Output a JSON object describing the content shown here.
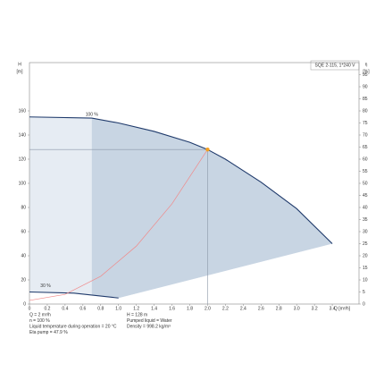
{
  "chart_data": {
    "type": "line",
    "title": "SQE 2-115, 1*240 V",
    "y_label": "H",
    "y_unit": "[m]",
    "y2_label": "η",
    "y2_unit": "[%]",
    "x_label": "Q [m³/h]",
    "xlim": [
      0,
      3.7
    ],
    "ylim": [
      0,
      200
    ],
    "y2lim": [
      0,
      100
    ],
    "xticks": [
      0,
      0.2,
      0.4,
      0.6,
      0.8,
      {
        "value": 1,
        "label": "1.0"
      },
      1.2,
      1.4,
      1.6,
      1.8,
      {
        "value": 2,
        "label": "2.0"
      },
      2.2,
      2.4,
      2.6,
      2.8,
      {
        "value": 3,
        "label": "3.0"
      },
      3.2,
      3.4
    ],
    "yticks": [
      0,
      20,
      40,
      60,
      80,
      100,
      120,
      140,
      160
    ],
    "y2ticks": [
      0,
      5,
      10,
      15,
      20,
      25,
      30,
      35,
      40,
      45,
      50,
      55,
      60,
      65,
      70,
      75,
      80,
      85,
      90,
      95
    ],
    "series": [
      {
        "name": "100 %",
        "color": "#1f3a6b",
        "x": [
          0,
          0.7,
          1.0,
          1.4,
          1.8,
          2.0,
          2.2,
          2.6,
          3.0,
          3.4
        ],
        "values": [
          155,
          154,
          150,
          143,
          134,
          128,
          120,
          101,
          79,
          50
        ]
      },
      {
        "name": "30 %",
        "color": "#1f3a6b",
        "x": [
          0,
          0.5,
          1.0
        ],
        "values": [
          10,
          9,
          5
        ]
      },
      {
        "color": "#f08a8a",
        "x": [
          0,
          0.4,
          0.8,
          1.2,
          1.6,
          2.0
        ],
        "values": [
          3,
          8,
          23,
          48,
          83,
          128
        ]
      }
    ],
    "operating_point": {
      "x": 2,
      "y": 128,
      "color": "#f5a020"
    },
    "info_left": [
      "Q = 2 m³/h",
      "n = 100 %",
      "Liquid temperature during operation = 20 °C",
      "Eta pump = 47.9 %"
    ],
    "info_right": [
      "H = 128 m",
      "Pumped liquid = Water",
      "Density = 998.2 kg/m³"
    ]
  }
}
